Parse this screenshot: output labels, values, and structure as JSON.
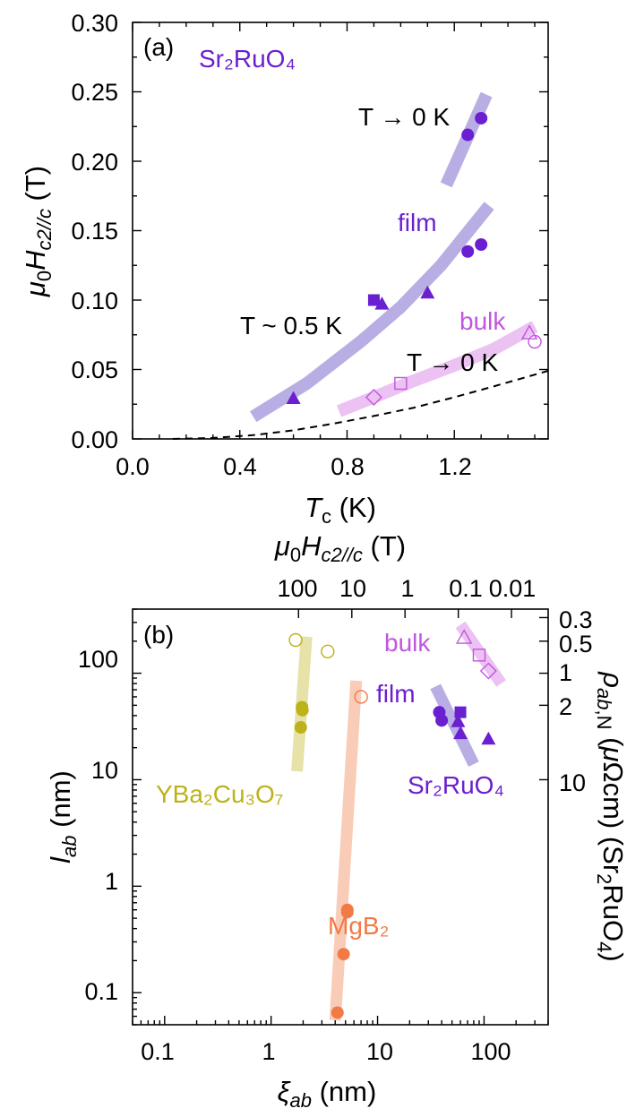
{
  "colors": {
    "sro": "#6A1FD0",
    "sro_band": "#B9AEE4",
    "bulk": "#C255E0",
    "bulk_band": "#EBC2F2",
    "ybco": "#BDB21A",
    "ybco_band": "#E6E2A8",
    "mgb2": "#F27A45",
    "mgb2_band": "#F9CCB8"
  },
  "chart_data": [
    {
      "type": "scatter",
      "panel_label": "(a)",
      "title": "Sr₂RuO₄",
      "xlabel": "Tc (K)",
      "ylabel": "μ0Hc2//c (T)",
      "xlim": [
        0,
        1.55
      ],
      "ylim": [
        0,
        0.3
      ],
      "x_ticks": [
        "0.0",
        "0.4",
        "0.8",
        "1.2"
      ],
      "y_ticks": [
        "0.00",
        "0.05",
        "0.10",
        "0.15",
        "0.20",
        "0.25",
        "0.30"
      ],
      "annotations": {
        "t0_film": "T → 0 K",
        "film": "film",
        "t05": "T ~ 0.5 K",
        "bulk": "bulk",
        "t0_bulk": "T → 0 K"
      },
      "series": [
        {
          "group": "film T→0 K",
          "marker": "circle",
          "filled": true,
          "x": [
            1.25,
            1.3
          ],
          "y": [
            0.219,
            0.231
          ]
        },
        {
          "group": "film T~0.5 K",
          "marker": "circle",
          "filled": true,
          "x": [
            1.25,
            1.3
          ],
          "y": [
            0.135,
            0.14
          ]
        },
        {
          "group": "film T~0.5 K",
          "marker": "square",
          "filled": true,
          "x": [
            0.9
          ],
          "y": [
            0.1
          ]
        },
        {
          "group": "film T~0.5 K",
          "marker": "triangle",
          "filled": true,
          "x": [
            0.6,
            0.93,
            1.1
          ],
          "y": [
            0.029,
            0.097,
            0.105
          ]
        },
        {
          "group": "bulk",
          "marker": "diamond",
          "filled": false,
          "x": [
            0.9
          ],
          "y": [
            0.03
          ]
        },
        {
          "group": "bulk",
          "marker": "square",
          "filled": false,
          "x": [
            1.0
          ],
          "y": [
            0.04
          ]
        },
        {
          "group": "bulk",
          "marker": "triangle",
          "filled": false,
          "x": [
            1.48
          ],
          "y": [
            0.076
          ]
        },
        {
          "group": "bulk",
          "marker": "circle",
          "filled": false,
          "x": [
            1.5
          ],
          "y": [
            0.07
          ]
        }
      ],
      "bands": [
        {
          "group": "film T→0 K",
          "x": [
            1.17,
            1.32
          ],
          "y": [
            0.183,
            0.248
          ]
        },
        {
          "group": "film T~0.5 K",
          "x": [
            0.45,
            0.65,
            0.85,
            1.0,
            1.15,
            1.33
          ],
          "y": [
            0.016,
            0.04,
            0.07,
            0.095,
            0.125,
            0.168
          ]
        },
        {
          "group": "bulk",
          "x": [
            0.77,
            0.9,
            1.05,
            1.2,
            1.35,
            1.5
          ],
          "y": [
            0.02,
            0.03,
            0.042,
            0.053,
            0.065,
            0.081
          ]
        }
      ],
      "dashed_curve": {
        "x": [
          0.15,
          0.3,
          0.45,
          0.6,
          0.75,
          0.9,
          1.05,
          1.2,
          1.35,
          1.55
        ],
        "y": [
          0.0,
          0.0007,
          0.0027,
          0.0062,
          0.011,
          0.0165,
          0.0225,
          0.03,
          0.038,
          0.049
        ]
      }
    },
    {
      "type": "scatter",
      "panel_label": "(b)",
      "xlabel": "ξab (nm)",
      "ylabel": "lab (nm)",
      "top_label": "μ0Hc2//c (T)",
      "right_label": "ρab,N (μΩcm) (Sr2RuO4)",
      "x_scale": "log",
      "y_scale": "log",
      "xlim": [
        0.05,
        400
      ],
      "ylim": [
        0.05,
        400
      ],
      "x_ticks": [
        "0.1",
        "1",
        "10",
        "100"
      ],
      "y_ticks": [
        "0.1",
        "1",
        "10",
        "100"
      ],
      "top_ticks": [
        "100",
        "10",
        "1",
        "0.1",
        "0.01"
      ],
      "top_tick_positions_xi": [
        1.81,
        5.73,
        18.1,
        57.3,
        181
      ],
      "right_ticks": [
        "0.3",
        "0.5",
        "1",
        "2",
        "10"
      ],
      "right_tick_positions_l": [
        333,
        200,
        100,
        50,
        10
      ],
      "annotations": {
        "bulk": "bulk",
        "film": "film",
        "sro": "Sr₂RuO₄",
        "ybco": "YBa₂Cu₃O₇",
        "mgb2": "MgB₂"
      },
      "series": [
        {
          "group": "YBa2Cu3O7",
          "marker": "circle",
          "filled": false,
          "x": [
            1.7,
            3.4
          ],
          "y": [
            205,
            160
          ]
        },
        {
          "group": "YBa2Cu3O7",
          "marker": "circle",
          "filled": true,
          "x": [
            1.95,
            1.97,
            1.9
          ],
          "y": [
            48,
            45,
            31
          ]
        },
        {
          "group": "MgB2",
          "marker": "circle",
          "filled": false,
          "x": [
            7.0
          ],
          "y": [
            60
          ]
        },
        {
          "group": "MgB2",
          "marker": "circle",
          "filled": true,
          "x": [
            5.2,
            5.2,
            4.8,
            4.2
          ],
          "y": [
            0.6,
            0.57,
            0.23,
            0.065
          ]
        },
        {
          "group": "film",
          "marker": "circle",
          "filled": true,
          "x": [
            38,
            40
          ],
          "y": [
            43,
            36
          ]
        },
        {
          "group": "film",
          "marker": "square",
          "filled": true,
          "x": [
            60
          ],
          "y": [
            43
          ]
        },
        {
          "group": "film",
          "marker": "triangle",
          "filled": true,
          "x": [
            57,
            60,
            110
          ],
          "y": [
            35,
            27,
            24
          ]
        },
        {
          "group": "bulk",
          "marker": "triangle",
          "filled": false,
          "x": [
            65
          ],
          "y": [
            215
          ]
        },
        {
          "group": "bulk",
          "marker": "square",
          "filled": false,
          "x": [
            90
          ],
          "y": [
            148
          ]
        },
        {
          "group": "bulk",
          "marker": "diamond",
          "filled": false,
          "x": [
            110
          ],
          "y": [
            105
          ]
        }
      ],
      "bands": [
        {
          "group": "YBa2Cu3O7",
          "x": [
            2.15,
            1.75
          ],
          "y": [
            220,
            12
          ]
        },
        {
          "group": "MgB2",
          "x": [
            6.3,
            4.0
          ],
          "y": [
            85,
            0.055
          ]
        },
        {
          "group": "film",
          "x": [
            35,
            80
          ],
          "y": [
            75,
            14
          ]
        },
        {
          "group": "bulk",
          "x": [
            60,
            145
          ],
          "y": [
            285,
            80
          ]
        }
      ]
    }
  ]
}
